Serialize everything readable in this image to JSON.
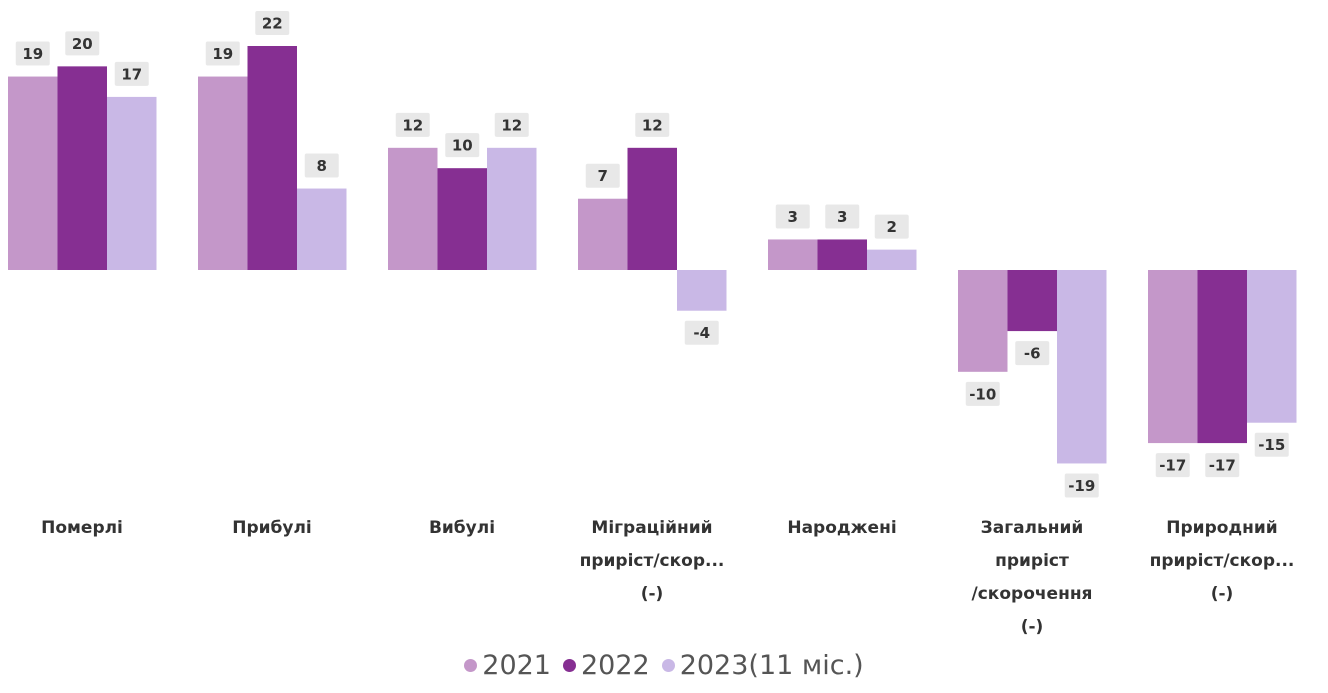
{
  "chart_data": {
    "type": "bar",
    "categories": [
      "Померлі",
      "Прибулі",
      "Вибулі",
      "Міграційний\nприріст/скор...\n(-)",
      "Народжені",
      "Загальний\nприріст\n/скорочення\n(-)",
      "Природний\nприріст/скор...\n(-)"
    ],
    "series": [
      {
        "name": "2021",
        "color": "#c497c9",
        "values": [
          19,
          19,
          12,
          7,
          3,
          -10,
          -17
        ]
      },
      {
        "name": "2022",
        "color": "#862f92",
        "values": [
          20,
          22,
          10,
          12,
          3,
          -6,
          -17
        ]
      },
      {
        "name": "2023(11 міс.)",
        "color": "#c9b8e6",
        "values": [
          17,
          8,
          12,
          -4,
          2,
          -19,
          -15
        ]
      }
    ]
  }
}
